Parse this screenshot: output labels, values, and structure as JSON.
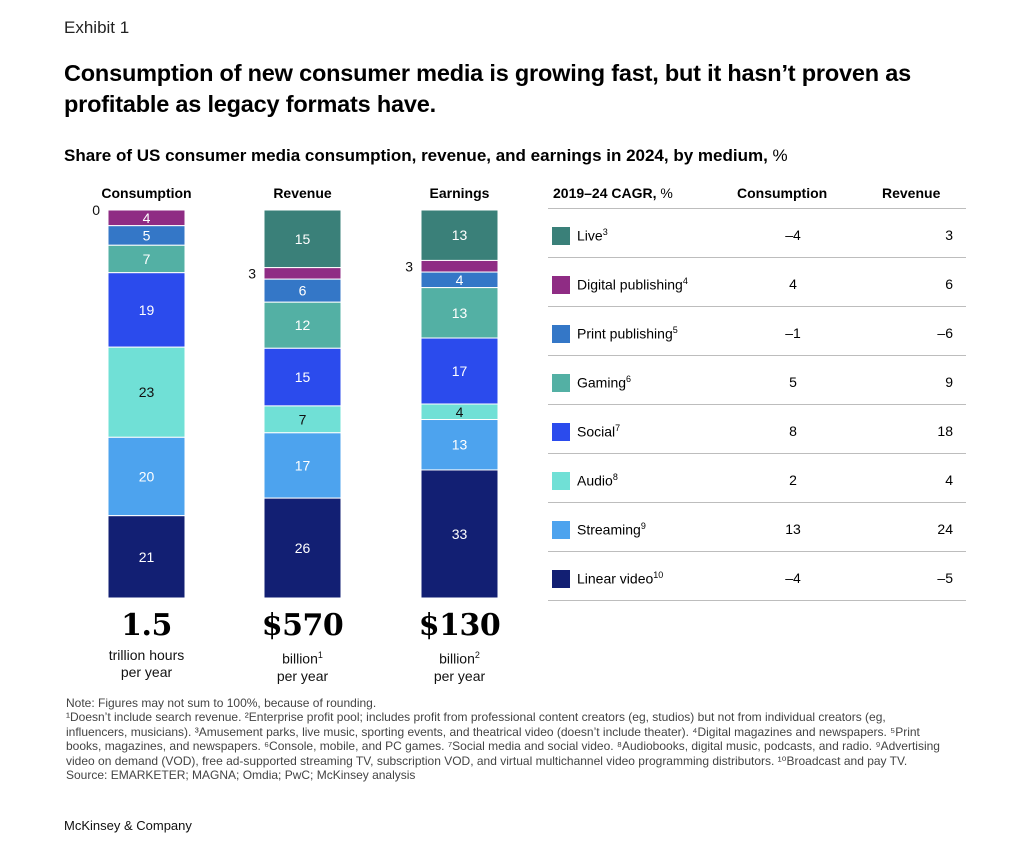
{
  "exhibit": "Exhibit 1",
  "title": "Consumption of new consumer media is growing fast, but it hasn’t proven as profitable as legacy formats have.",
  "subtitle_bold": "Share of US consumer media consumption, revenue, and earnings in 2024, by medium,",
  "subtitle_unit": " %",
  "colors": {
    "live": "#3a8079",
    "digital_publishing": "#8f2c84",
    "print_publishing": "#3477c7",
    "gaming": "#53b0a4",
    "social": "#2b4bed",
    "audio": "#70e0d6",
    "streaming": "#4da3ee",
    "linear_video": "#121f73"
  },
  "chart_data": {
    "type": "bar",
    "stacked": true,
    "categories": [
      "Consumption",
      "Revenue",
      "Earnings"
    ],
    "series": [
      {
        "name": "Live",
        "values": [
          0,
          15,
          13
        ]
      },
      {
        "name": "Digital publishing",
        "values": [
          4,
          3,
          3
        ]
      },
      {
        "name": "Print publishing",
        "values": [
          5,
          6,
          4
        ]
      },
      {
        "name": "Gaming",
        "values": [
          7,
          12,
          13
        ]
      },
      {
        "name": "Social",
        "values": [
          19,
          15,
          17
        ]
      },
      {
        "name": "Audio",
        "values": [
          23,
          7,
          4
        ]
      },
      {
        "name": "Streaming",
        "values": [
          20,
          17,
          13
        ]
      },
      {
        "name": "Linear video",
        "values": [
          21,
          26,
          33
        ]
      }
    ],
    "totals": [
      {
        "value": "1.5",
        "unit_line1": "trillion hours",
        "unit_sup": "",
        "unit_line2": "per year"
      },
      {
        "value": "$570",
        "unit_line1": "billion",
        "unit_sup": "1",
        "unit_line2": "per year"
      },
      {
        "value": "$130",
        "unit_line1": "billion",
        "unit_sup": "2",
        "unit_line2": "per year"
      }
    ]
  },
  "legend": {
    "header_bold": "2019–24 CAGR,",
    "header_unit": " %",
    "col_consumption": "Consumption",
    "col_revenue": "Revenue",
    "rows": [
      {
        "label": "Live",
        "sup": "3",
        "consumption": "–4",
        "revenue": "3",
        "color_key": "live"
      },
      {
        "label": "Digital publishing",
        "sup": "4",
        "consumption": "4",
        "revenue": "6",
        "color_key": "digital_publishing"
      },
      {
        "label": "Print publishing",
        "sup": "5",
        "consumption": "–1",
        "revenue": "–6",
        "color_key": "print_publishing"
      },
      {
        "label": "Gaming",
        "sup": "6",
        "consumption": "5",
        "revenue": "9",
        "color_key": "gaming"
      },
      {
        "label": "Social",
        "sup": "7",
        "consumption": "8",
        "revenue": "18",
        "color_key": "social"
      },
      {
        "label": "Audio",
        "sup": "8",
        "consumption": "2",
        "revenue": "4",
        "color_key": "audio"
      },
      {
        "label": "Streaming",
        "sup": "9",
        "consumption": "13",
        "revenue": "24",
        "color_key": "streaming"
      },
      {
        "label": "Linear video",
        "sup": "10",
        "consumption": "–4",
        "revenue": "–5",
        "color_key": "linear_video"
      }
    ]
  },
  "notes": {
    "note": "Note: Figures may not sum to 100%, because of rounding.",
    "footnotes": "¹Doesn’t include search revenue. ²Enterprise profit pool; includes profit from professional content creators (eg, studios) but not from individual creators (eg, influencers, musicians). ³Amusement parks, live music, sporting events, and theatrical video (doesn’t include theater). ⁴Digital magazines and newspapers. ⁵Print books, magazines, and newspapers. ⁶Console, mobile, and PC games. ⁷Social media and social video. ⁸Audiobooks, digital music, podcasts, and radio. ⁹Advertising video on demand (VOD), free ad-supported streaming TV, subscription VOD, and virtual multichannel video programming distributors. ¹⁰Broadcast and pay TV.",
    "source": "Source: EMARKETER; MAGNA; Omdia; PwC; McKinsey analysis"
  },
  "logo": "McKinsey & Company"
}
